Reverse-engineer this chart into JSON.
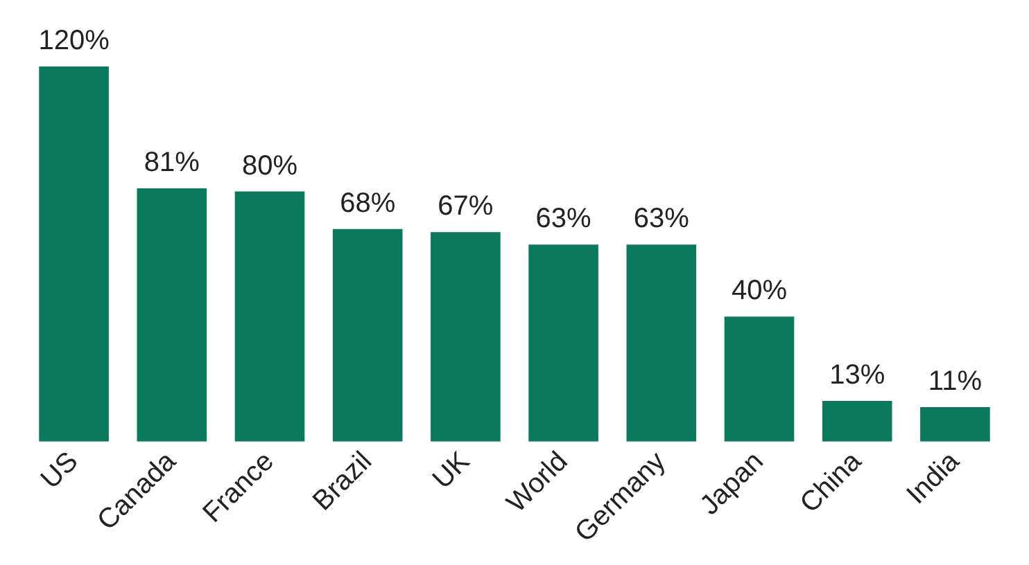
{
  "chart_data": {
    "type": "bar",
    "categories": [
      "US",
      "Canada",
      "France",
      "Brazil",
      "UK",
      "World",
      "Germany",
      "Japan",
      "China",
      "India"
    ],
    "values": [
      120,
      81,
      80,
      68,
      67,
      63,
      63,
      40,
      13,
      11
    ],
    "value_labels": [
      "120%",
      "81%",
      "80%",
      "68%",
      "67%",
      "63%",
      "63%",
      "40%",
      "13%",
      "11%"
    ],
    "color": "#0b7a5c",
    "grid": false,
    "legend": false,
    "tick_labels": "x"
  }
}
